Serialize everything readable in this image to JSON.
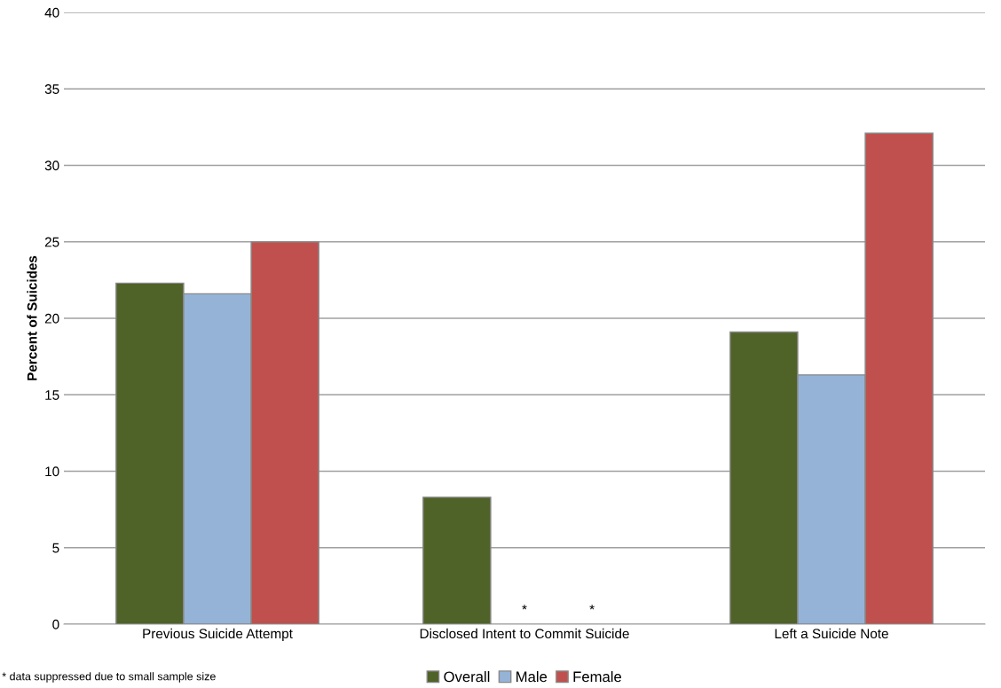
{
  "chart_data": {
    "type": "bar",
    "ylabel": "Percent of Suicides",
    "categories": [
      "Previous Suicide Attempt",
      "Disclosed Intent to Commit Suicide",
      "Left a Suicide Note"
    ],
    "series": [
      {
        "name": "Overall",
        "color": "#4f6228",
        "values": [
          22.3,
          8.3,
          19.1
        ]
      },
      {
        "name": "Male",
        "color": "#95b3d7",
        "values": [
          21.6,
          null,
          16.3
        ]
      },
      {
        "name": "Female",
        "color": "#c0504d",
        "values": [
          25.0,
          null,
          32.1
        ]
      }
    ],
    "ylim": [
      0,
      40
    ],
    "yticks": [
      0,
      5,
      10,
      15,
      20,
      25,
      30,
      35,
      40
    ],
    "grid": "y",
    "legend": "bottom",
    "annotations": [
      "*",
      "*",
      "* data suppressed due to small sample size"
    ]
  }
}
